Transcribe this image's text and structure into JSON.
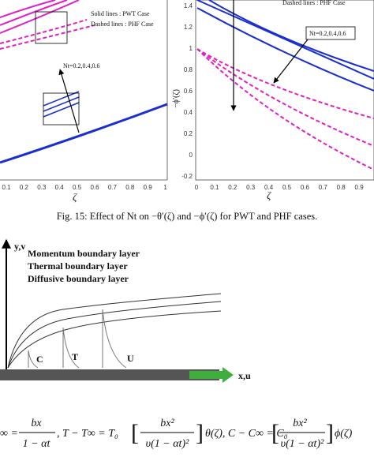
{
  "left_figure": {
    "legend": [
      "Solid lines    : PWT Case",
      "Dashed lines : PHF Case"
    ],
    "annotation": "Nt=0.2,0.4,0.6",
    "x_ticks": [
      "0.1",
      "0.2",
      "0.3",
      "0.4",
      "0.5",
      "0.6",
      "0.7",
      "0.8",
      "0.9",
      "1"
    ],
    "x_label": "ζ"
  },
  "right_figure": {
    "legend": "Dashed lines : PHF Case",
    "annotation": "Nt=0.2,0.4,0.6",
    "y_ticks": [
      "1.4",
      "1.2",
      "1",
      "0.8",
      "0.6",
      "0.4",
      "0.2",
      "0",
      "-0.2"
    ],
    "x_ticks": [
      "0",
      "0.1",
      "0.2",
      "0.3",
      "0.4",
      "0.5",
      "0.6",
      "0.7",
      "0.8",
      "0.9"
    ],
    "y_label": "−ϕ′(ζ)",
    "x_label": "ζ"
  },
  "caption": "Fig. 15: Effect of Nt on −θ′(ζ) and −ϕ′(ζ) for PWT and PHF cases.",
  "diagram": {
    "axis_y": "y,v",
    "axis_x": "x,u",
    "legend": [
      "Momentum boundary layer",
      "Thermal boundary layer",
      "Diffusive boundary layer"
    ],
    "labels": [
      "C",
      "T",
      "U"
    ]
  },
  "equation": {
    "start": "∞ =",
    "frac1_num": "bx",
    "frac1_den": "1 − αt",
    "mid1": ", T − T∞ = T₀",
    "frac2_num": "bx²",
    "frac2_den": "υ(1 − αt)²",
    "mid2": "θ(ζ), C − C∞ = C₀",
    "frac3_num": "bx²",
    "frac3_den": "υ(1 − αt)²",
    "end": "ϕ(ζ)"
  }
}
